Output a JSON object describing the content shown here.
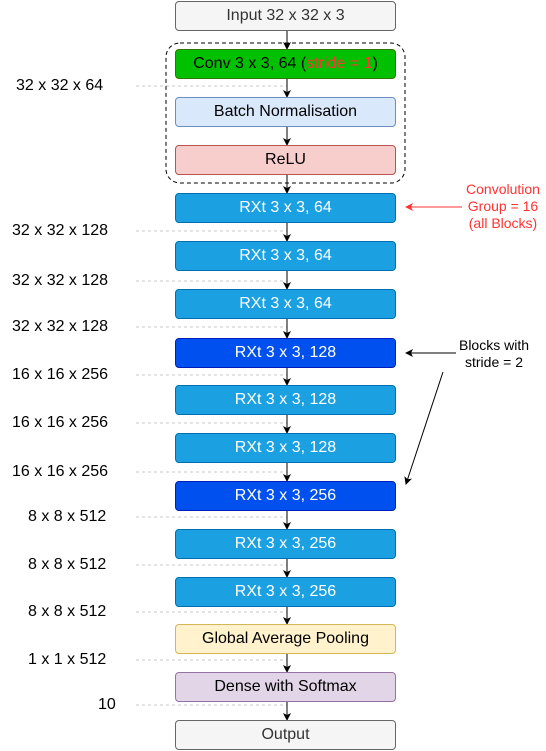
{
  "blocks": [
    {
      "label": "Input 32 x 32 x 3",
      "style": "gray"
    },
    {
      "label": "Conv 3 x 3, 64 (",
      "stride_text": "stride = 1",
      "suffix": ")",
      "style": "green"
    },
    {
      "label": "Batch Normalisation",
      "style": "lblue"
    },
    {
      "label": "ReLU",
      "style": "pink"
    },
    {
      "label": "RXt 3 x 3, 64",
      "style": "rxt"
    },
    {
      "label": "RXt 3 x 3,  64",
      "style": "rxt"
    },
    {
      "label": "RXt 3 x 3, 64",
      "style": "rxt"
    },
    {
      "label": "RXt 3 x 3,  128",
      "style": "rxtd"
    },
    {
      "label": "RXt 3 x 3,  128",
      "style": "rxt"
    },
    {
      "label": "RXt 3 x 3,  128",
      "style": "rxt"
    },
    {
      "label": "RXt 3 x 3,  256",
      "style": "rxtd"
    },
    {
      "label": "RXt 3 x 3,  256",
      "style": "rxt"
    },
    {
      "label": "RXt 3 x 3,  256",
      "style": "rxt"
    },
    {
      "label": "Global Average Pooling",
      "style": "yellow"
    },
    {
      "label": "Dense with Softmax",
      "style": "purple"
    },
    {
      "label": "Output",
      "style": "gray"
    }
  ],
  "dims": [
    "32 x 32 x 64",
    "32 x 32 x 128",
    "32 x 32 x 128",
    "32 x 32 x 128",
    "16 x 16 x 256",
    "16 x 16 x 256",
    "16 x 16 x 256",
    "8 x 8 x 512",
    "8 x 8 x 512",
    "8 x 8 x 512",
    "1 x 1 x 512",
    "10"
  ],
  "notes": {
    "group": [
      "Convolution",
      "Group = 16",
      "(all Blocks)"
    ],
    "stride": [
      "Blocks with",
      "stride = 2"
    ]
  },
  "colors": {
    "gray": "#f5f5f5",
    "green": "#00c000",
    "lblue": "#dae8fc",
    "pink": "#f8cecc",
    "rxt": "#1ba1e2",
    "rxtd": "#0050ef",
    "yellow": "#fff2cc",
    "purple": "#e1d5e7",
    "note_red": "#ff3333"
  }
}
